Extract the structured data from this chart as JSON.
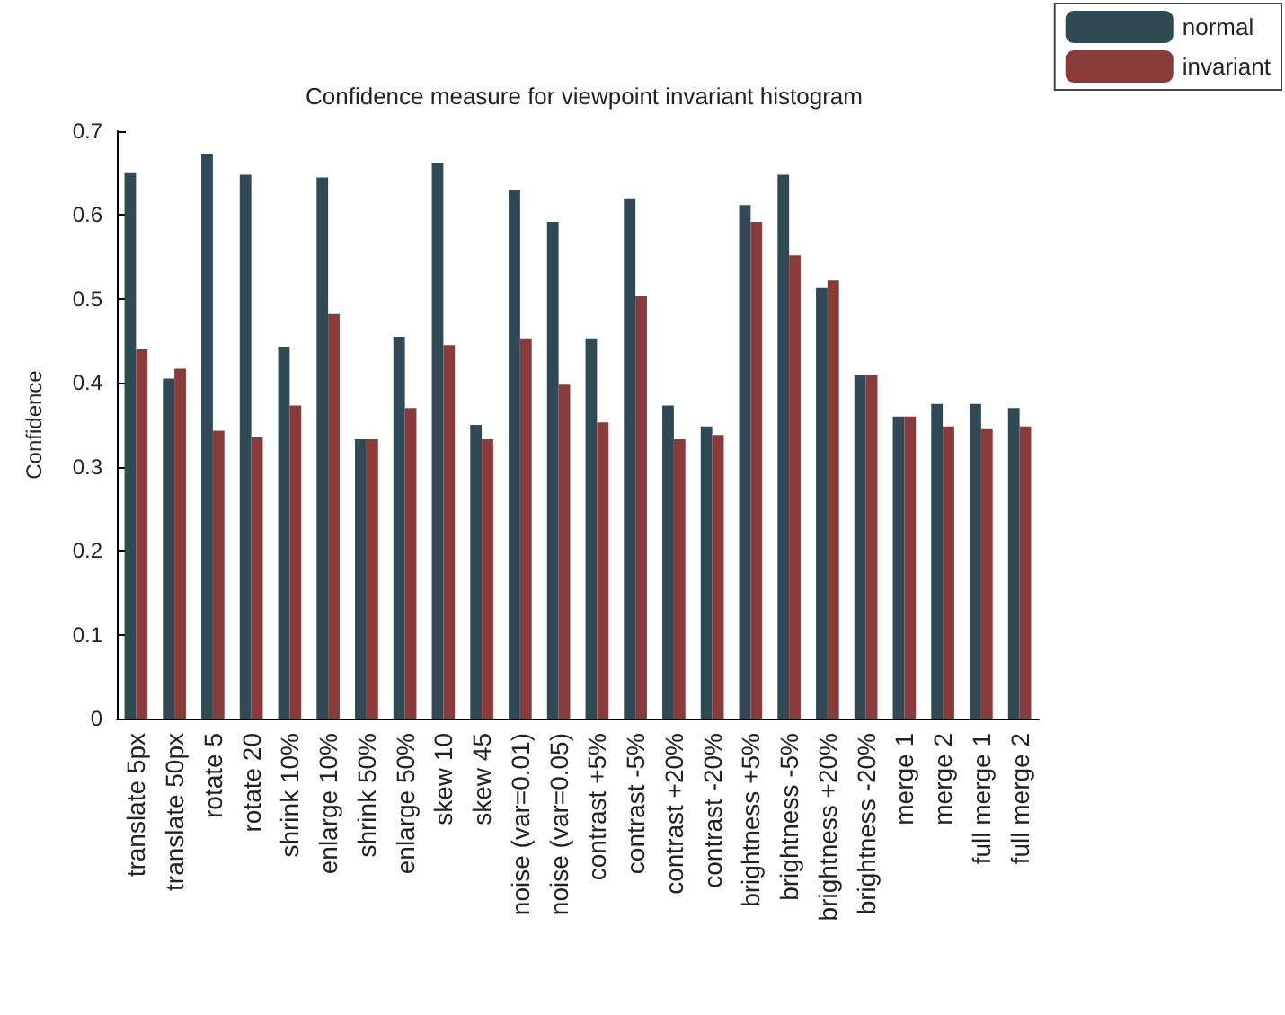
{
  "chart_data": {
    "type": "bar",
    "title": "Confidence measure for viewpoint invariant histogram",
    "ylabel": "Confidence",
    "categories": [
      "translate 5px",
      "translate 50px",
      "rotate 5",
      "rotate 20",
      "shrink 10%",
      "enlarge 10%",
      "shrink 50%",
      "enlarge 50%",
      "skew 10",
      "skew 45",
      "noise (var=0.01)",
      "noise (var=0.05)",
      "contrast +5%",
      "contrast -5%",
      "contrast +20%",
      "contrast -20%",
      "brightness +5%",
      "brightness -5%",
      "brightness +20%",
      "brightness -20%",
      "merge 1",
      "merge 2",
      "full merge 1",
      "full merge 2"
    ],
    "series": [
      {
        "name": "normal",
        "color": "#2f4a55",
        "values": [
          0.65,
          0.405,
          0.673,
          0.648,
          0.443,
          0.645,
          0.333,
          0.455,
          0.662,
          0.35,
          0.63,
          0.592,
          0.453,
          0.62,
          0.373,
          0.348,
          0.612,
          0.648,
          0.513,
          0.41,
          0.36,
          0.375,
          0.375,
          0.37
        ]
      },
      {
        "name": "invariant",
        "color": "#8b3a3a",
        "values": [
          0.44,
          0.417,
          0.343,
          0.335,
          0.373,
          0.482,
          0.333,
          0.37,
          0.445,
          0.333,
          0.453,
          0.398,
          0.353,
          0.503,
          0.333,
          0.338,
          0.592,
          0.552,
          0.522,
          0.41,
          0.36,
          0.348,
          0.345,
          0.348
        ]
      }
    ],
    "ylim": [
      0,
      0.7
    ],
    "yticks": [
      0,
      0.1,
      0.2,
      0.3,
      0.4,
      0.5,
      0.6,
      0.7
    ],
    "grid": false,
    "legend": "top right"
  }
}
